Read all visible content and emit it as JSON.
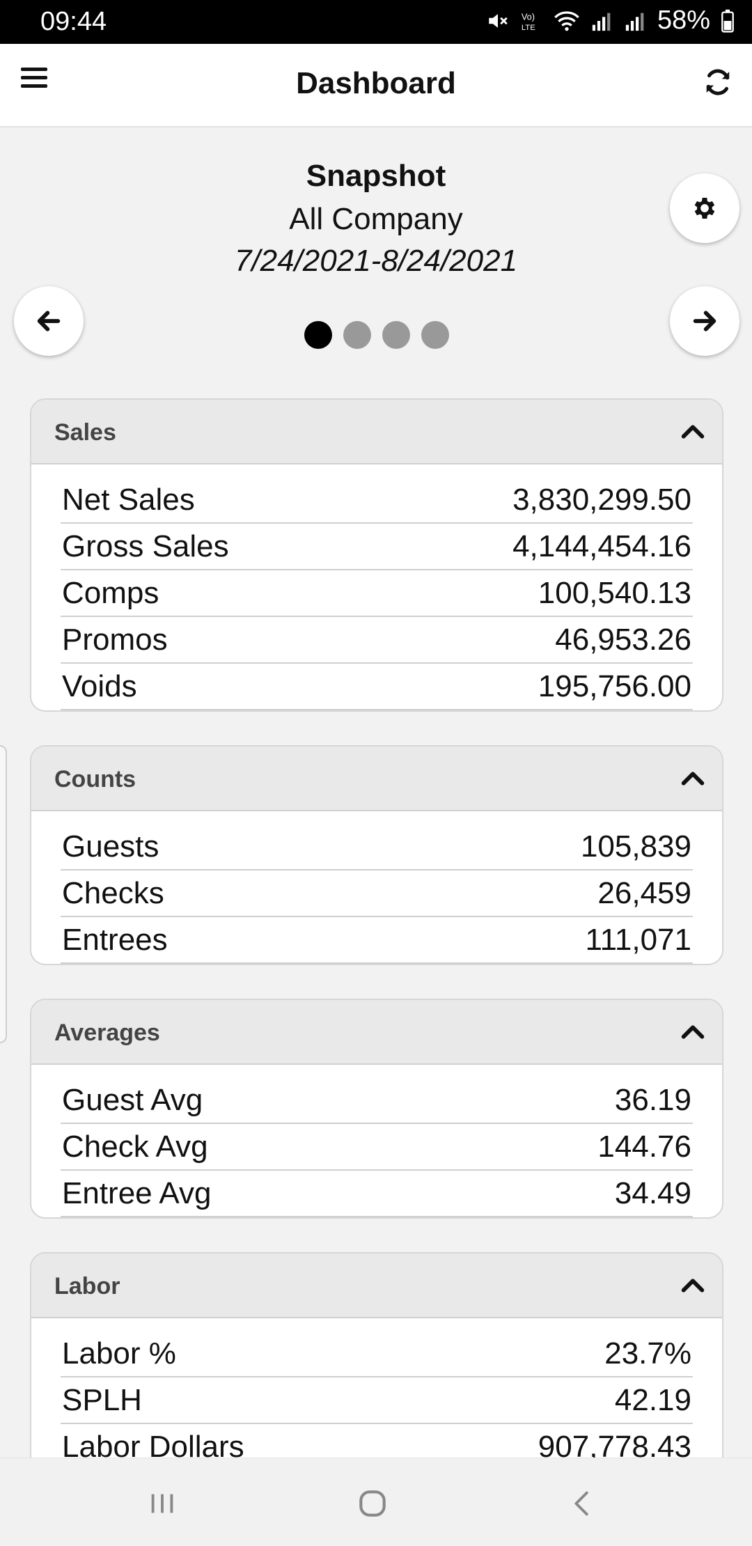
{
  "status": {
    "time": "09:44",
    "battery": "58%"
  },
  "app_bar": {
    "title": "Dashboard"
  },
  "snapshot": {
    "title": "Snapshot",
    "scope": "All Company",
    "date_range": "7/24/2021-8/24/2021",
    "page_count": 4,
    "active_page": 1
  },
  "sections": {
    "sales": {
      "title": "Sales",
      "rows": [
        {
          "label": "Net Sales",
          "value": "3,830,299.50"
        },
        {
          "label": "Gross Sales",
          "value": "4,144,454.16"
        },
        {
          "label": "Comps",
          "value": "100,540.13"
        },
        {
          "label": "Promos",
          "value": "46,953.26"
        },
        {
          "label": "Voids",
          "value": "195,756.00"
        }
      ]
    },
    "counts": {
      "title": "Counts",
      "rows": [
        {
          "label": "Guests",
          "value": "105,839"
        },
        {
          "label": "Checks",
          "value": "26,459"
        },
        {
          "label": "Entrees",
          "value": "111,071"
        }
      ]
    },
    "averages": {
      "title": "Averages",
      "rows": [
        {
          "label": "Guest Avg",
          "value": "36.19"
        },
        {
          "label": "Check Avg",
          "value": "144.76"
        },
        {
          "label": "Entree Avg",
          "value": "34.49"
        }
      ]
    },
    "labor": {
      "title": "Labor",
      "rows": [
        {
          "label": "Labor %",
          "value": "23.7%"
        },
        {
          "label": "SPLH",
          "value": "42.19"
        },
        {
          "label": "Labor Dollars",
          "value": "907,778.43"
        }
      ]
    }
  },
  "icons": {
    "menu": "hamburger-icon",
    "refresh": "refresh-icon",
    "settings": "gear-icon",
    "prev": "arrow-left-icon",
    "next": "arrow-right-icon",
    "collapse": "chevron-up-icon"
  }
}
